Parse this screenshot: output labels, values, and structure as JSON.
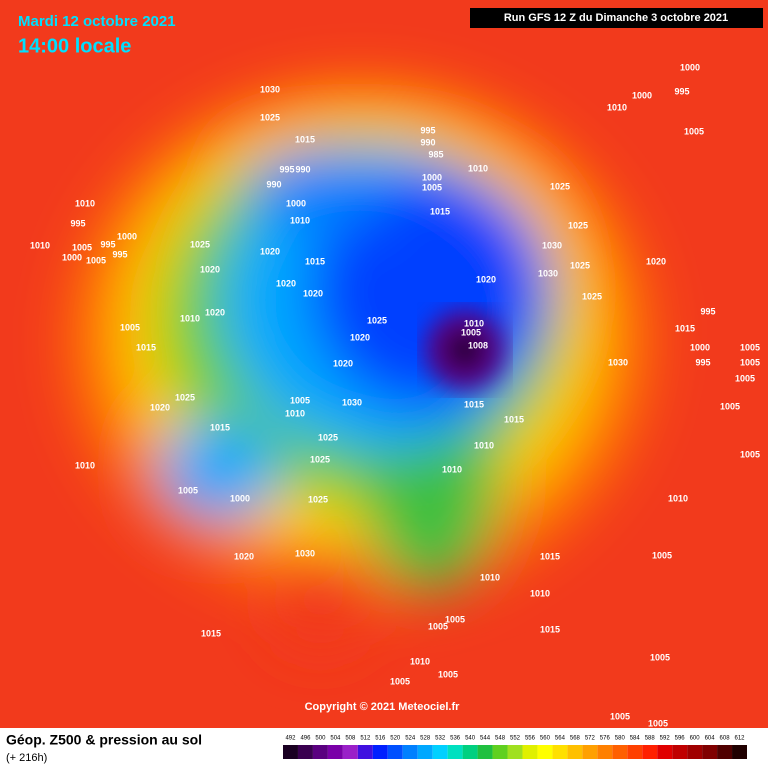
{
  "header": {
    "date": "Mardi 12 octobre 2021",
    "time": "14:00 locale",
    "run": "Run GFS 12 Z du Dimanche 3 octobre 2021"
  },
  "copyright": "Copyright © 2021 Meteociel.fr",
  "legend": {
    "title": "Géop. Z500 & pression au sol",
    "subtitle": "(+ 216h)",
    "scale": [
      492,
      496,
      500,
      504,
      508,
      512,
      516,
      520,
      524,
      528,
      532,
      536,
      540,
      544,
      548,
      552,
      556,
      560,
      564,
      568,
      572,
      576,
      580,
      584,
      588,
      592,
      596,
      600,
      604,
      608,
      612
    ],
    "colors": [
      "#1a0022",
      "#3a0050",
      "#5a0080",
      "#7a00a8",
      "#9a20c8",
      "#4010e0",
      "#0020ff",
      "#0050ff",
      "#0080ff",
      "#00a8ff",
      "#00d0ff",
      "#00e0c0",
      "#00d080",
      "#20c040",
      "#60d020",
      "#a0e020",
      "#e0f000",
      "#ffff00",
      "#ffe000",
      "#ffc000",
      "#ffa000",
      "#ff8000",
      "#ff6000",
      "#ff4000",
      "#ff2000",
      "#e00000",
      "#c00000",
      "#a00000",
      "#800000",
      "#500000",
      "#200000"
    ]
  },
  "isobar_labels": [
    1030,
    1025,
    1015,
    995,
    990,
    985,
    995,
    990,
    990,
    1000,
    1010,
    1010,
    995,
    1000,
    995,
    1005,
    995,
    1000,
    1005,
    1010,
    1025,
    1020,
    1015,
    1020,
    1020,
    1020,
    1010,
    1020,
    1005,
    1015,
    1025,
    1020,
    1020,
    1010,
    1005,
    1008,
    1015,
    1015,
    1005,
    1010,
    1030,
    1025,
    1020,
    1015,
    1025,
    1025,
    1010,
    1010,
    1010,
    1005,
    1000,
    1025,
    1020,
    1030,
    1015,
    1015,
    1010,
    1010,
    1015,
    1005,
    1005,
    1010,
    1005,
    1005,
    1005,
    1005,
    1005,
    1005,
    1010,
    1005,
    1005,
    1005,
    1005,
    1005,
    1000,
    995,
    995,
    1015,
    1020,
    1025,
    1025,
    1030,
    1030,
    1025,
    1025,
    1010,
    1000,
    1005,
    1015,
    1020,
    1030,
    1000,
    1000,
    995,
    1010,
    1005
  ]
}
